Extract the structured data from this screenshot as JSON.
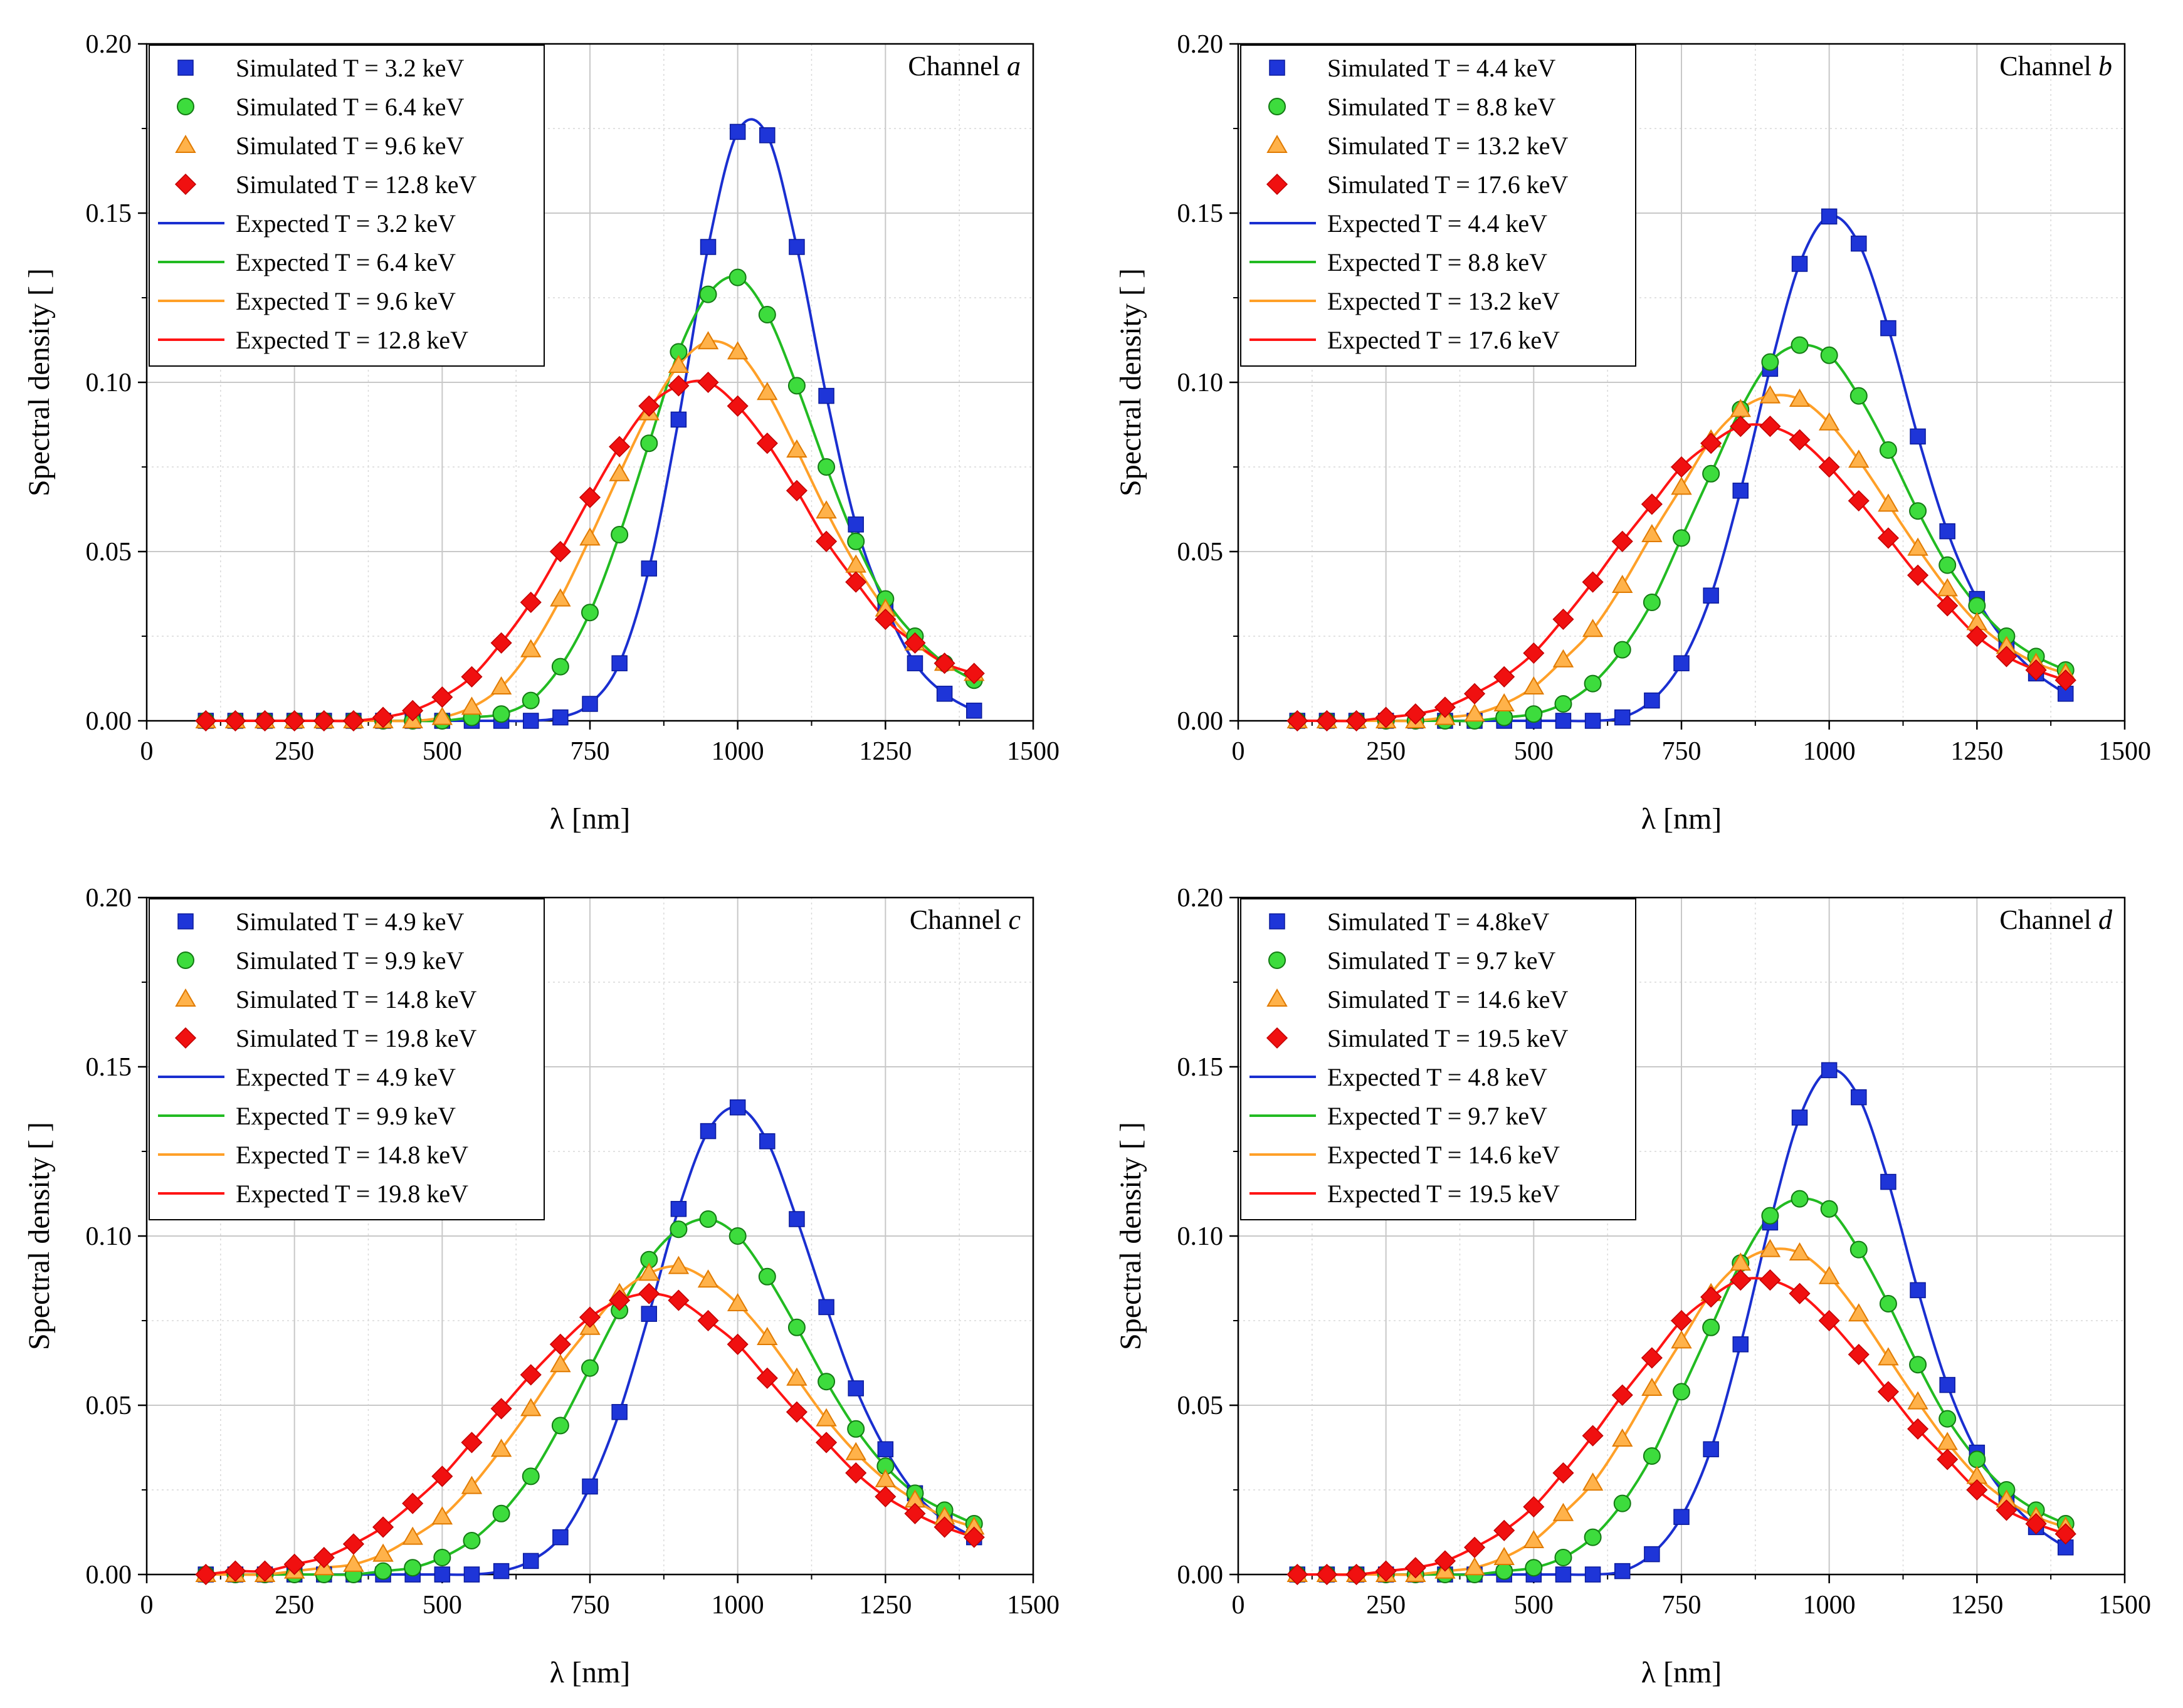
{
  "figure": {
    "colors": {
      "blue": "#1a2fd0",
      "green": "#22bb22",
      "orange": "#ffa028",
      "red": "#ff1414",
      "blue_marker": "#1e35d8",
      "green_marker": "#3ddc3d",
      "orange_marker": "#ffb24a",
      "red_marker": "#f01010"
    },
    "markers": [
      "square",
      "circle",
      "triangle",
      "diamond"
    ]
  },
  "chart_data": [
    {
      "type": "scatter",
      "channel_prefix": "Channel ",
      "channel_letter": "a",
      "xlabel": "λ [nm]",
      "ylabel": "Spectral density [ ]",
      "xlim": [
        0,
        1500
      ],
      "ylim": [
        0,
        0.2
      ],
      "xticks": [
        "0",
        "250",
        "500",
        "750",
        "1000",
        "1250",
        "1500"
      ],
      "yticks": [
        "0.00",
        "0.05",
        "0.10",
        "0.15",
        "0.20"
      ],
      "grid": true,
      "legend_position": "top-left",
      "x": [
        100,
        150,
        200,
        250,
        300,
        350,
        400,
        450,
        500,
        550,
        600,
        650,
        700,
        750,
        800,
        850,
        900,
        950,
        1000,
        1050,
        1100,
        1150,
        1200,
        1250,
        1300,
        1350,
        1400
      ],
      "series": [
        {
          "name": "Simulated T = 3.2 keV",
          "kind": "simulated",
          "color": "blue",
          "marker": "square",
          "values": [
            0,
            0,
            0,
            0,
            0,
            0,
            0,
            0,
            0,
            0,
            0,
            0,
            0.001,
            0.005,
            0.017,
            0.045,
            0.089,
            0.14,
            0.174,
            0.173,
            0.14,
            0.096,
            0.058,
            0.034,
            0.017,
            0.008,
            0.003
          ]
        },
        {
          "name": "Simulated T = 6.4 keV",
          "kind": "simulated",
          "color": "green",
          "marker": "circle",
          "values": [
            0,
            0,
            0,
            0,
            0,
            0,
            0,
            0,
            0,
            0.001,
            0.002,
            0.006,
            0.016,
            0.032,
            0.055,
            0.082,
            0.109,
            0.126,
            0.131,
            0.12,
            0.099,
            0.075,
            0.053,
            0.036,
            0.025,
            0.017,
            0.012
          ]
        },
        {
          "name": "Simulated T = 9.6 keV",
          "kind": "simulated",
          "color": "orange",
          "marker": "triangle",
          "values": [
            0,
            0,
            0,
            0,
            0,
            0,
            0,
            0,
            0.001,
            0.004,
            0.01,
            0.021,
            0.036,
            0.054,
            0.073,
            0.091,
            0.105,
            0.112,
            0.109,
            0.097,
            0.08,
            0.062,
            0.046,
            0.033,
            0.023,
            0.017,
            0.014
          ]
        },
        {
          "name": "Simulated T = 12.8 keV",
          "kind": "simulated",
          "color": "red",
          "marker": "diamond",
          "values": [
            0,
            0,
            0,
            0,
            0,
            0,
            0.001,
            0.003,
            0.007,
            0.013,
            0.023,
            0.035,
            0.05,
            0.066,
            0.081,
            0.093,
            0.099,
            0.1,
            0.093,
            0.082,
            0.068,
            0.053,
            0.041,
            0.03,
            0.023,
            0.017,
            0.014
          ]
        },
        {
          "name": "Expected T = 3.2 keV",
          "kind": "expected",
          "color": "blue",
          "of": 0
        },
        {
          "name": "Expected T = 6.4 keV",
          "kind": "expected",
          "color": "green",
          "of": 1
        },
        {
          "name": "Expected T = 9.6 keV",
          "kind": "expected",
          "color": "orange",
          "of": 2
        },
        {
          "name": "Expected T = 12.8 keV",
          "kind": "expected",
          "color": "red",
          "of": 3
        }
      ]
    },
    {
      "type": "scatter",
      "channel_prefix": "Channel ",
      "channel_letter": "b",
      "xlabel": "λ [nm]",
      "ylabel": "Spectral density [ ]",
      "xlim": [
        0,
        1500
      ],
      "ylim": [
        0,
        0.2
      ],
      "xticks": [
        "0",
        "250",
        "500",
        "750",
        "1000",
        "1250",
        "1500"
      ],
      "yticks": [
        "0.00",
        "0.05",
        "0.10",
        "0.15",
        "0.20"
      ],
      "grid": true,
      "legend_position": "top-left",
      "x": [
        100,
        150,
        200,
        250,
        300,
        350,
        400,
        450,
        500,
        550,
        600,
        650,
        700,
        750,
        800,
        850,
        900,
        950,
        1000,
        1050,
        1100,
        1150,
        1200,
        1250,
        1300,
        1350,
        1400
      ],
      "series": [
        {
          "name": "Simulated T = 4.4 keV",
          "kind": "simulated",
          "color": "blue",
          "marker": "square",
          "values": [
            0,
            0,
            0,
            0,
            0,
            0,
            0,
            0,
            0,
            0,
            0,
            0.001,
            0.006,
            0.017,
            0.037,
            0.068,
            0.104,
            0.135,
            0.149,
            0.141,
            0.116,
            0.084,
            0.056,
            0.036,
            0.023,
            0.014,
            0.008
          ]
        },
        {
          "name": "Simulated T = 8.8 keV",
          "kind": "simulated",
          "color": "green",
          "marker": "circle",
          "values": [
            0,
            0,
            0,
            0,
            0,
            0,
            0,
            0.001,
            0.002,
            0.005,
            0.011,
            0.021,
            0.035,
            0.054,
            0.073,
            0.092,
            0.106,
            0.111,
            0.108,
            0.096,
            0.08,
            0.062,
            0.046,
            0.034,
            0.025,
            0.019,
            0.015
          ]
        },
        {
          "name": "Simulated T = 13.2 keV",
          "kind": "simulated",
          "color": "orange",
          "marker": "triangle",
          "values": [
            0,
            0,
            0,
            0,
            0,
            0.001,
            0.002,
            0.005,
            0.01,
            0.018,
            0.027,
            0.04,
            0.055,
            0.069,
            0.083,
            0.092,
            0.096,
            0.095,
            0.088,
            0.077,
            0.064,
            0.051,
            0.039,
            0.029,
            0.022,
            0.017,
            0.014
          ]
        },
        {
          "name": "Simulated T = 17.6 keV",
          "kind": "simulated",
          "color": "red",
          "marker": "diamond",
          "values": [
            0,
            0,
            0,
            0.001,
            0.002,
            0.004,
            0.008,
            0.013,
            0.02,
            0.03,
            0.041,
            0.053,
            0.064,
            0.075,
            0.082,
            0.087,
            0.087,
            0.083,
            0.075,
            0.065,
            0.054,
            0.043,
            0.034,
            0.025,
            0.019,
            0.015,
            0.012
          ]
        },
        {
          "name": "Expected T = 4.4 keV",
          "kind": "expected",
          "color": "blue",
          "of": 0
        },
        {
          "name": "Expected T = 8.8 keV",
          "kind": "expected",
          "color": "green",
          "of": 1
        },
        {
          "name": "Expected T = 13.2 keV",
          "kind": "expected",
          "color": "orange",
          "of": 2
        },
        {
          "name": "Expected T = 17.6 keV",
          "kind": "expected",
          "color": "red",
          "of": 3
        }
      ]
    },
    {
      "type": "scatter",
      "channel_prefix": "Channel ",
      "channel_letter": "c",
      "xlabel": "λ [nm]",
      "ylabel": "Spectral density [ ]",
      "xlim": [
        0,
        1500
      ],
      "ylim": [
        0,
        0.2
      ],
      "xticks": [
        "0",
        "250",
        "500",
        "750",
        "1000",
        "1250",
        "1500"
      ],
      "yticks": [
        "0.00",
        "0.05",
        "0.10",
        "0.15",
        "0.20"
      ],
      "grid": true,
      "legend_position": "top-left",
      "x": [
        100,
        150,
        200,
        250,
        300,
        350,
        400,
        450,
        500,
        550,
        600,
        650,
        700,
        750,
        800,
        850,
        900,
        950,
        1000,
        1050,
        1100,
        1150,
        1200,
        1250,
        1300,
        1350,
        1400
      ],
      "series": [
        {
          "name": "Simulated T = 4.9 keV",
          "kind": "simulated",
          "color": "blue",
          "marker": "square",
          "values": [
            0,
            0,
            0,
            0,
            0,
            0,
            0,
            0,
            0,
            0,
            0.001,
            0.004,
            0.011,
            0.026,
            0.048,
            0.077,
            0.108,
            0.131,
            0.138,
            0.128,
            0.105,
            0.079,
            0.055,
            0.037,
            0.024,
            0.016,
            0.011
          ]
        },
        {
          "name": "Simulated T = 9.9 keV",
          "kind": "simulated",
          "color": "green",
          "marker": "circle",
          "values": [
            0,
            0,
            0,
            0,
            0,
            0,
            0.001,
            0.002,
            0.005,
            0.01,
            0.018,
            0.029,
            0.044,
            0.061,
            0.078,
            0.093,
            0.102,
            0.105,
            0.1,
            0.088,
            0.073,
            0.057,
            0.043,
            0.032,
            0.024,
            0.019,
            0.015
          ]
        },
        {
          "name": "Simulated T = 14.8 keV",
          "kind": "simulated",
          "color": "orange",
          "marker": "triangle",
          "values": [
            0,
            0,
            0,
            0.001,
            0.002,
            0.003,
            0.006,
            0.011,
            0.017,
            0.026,
            0.037,
            0.049,
            0.062,
            0.073,
            0.083,
            0.089,
            0.091,
            0.087,
            0.08,
            0.07,
            0.058,
            0.046,
            0.036,
            0.028,
            0.022,
            0.017,
            0.014
          ]
        },
        {
          "name": "Simulated T = 19.8 keV",
          "kind": "simulated",
          "color": "red",
          "marker": "diamond",
          "values": [
            0,
            0.001,
            0.001,
            0.003,
            0.005,
            0.009,
            0.014,
            0.021,
            0.029,
            0.039,
            0.049,
            0.059,
            0.068,
            0.076,
            0.081,
            0.083,
            0.081,
            0.075,
            0.068,
            0.058,
            0.048,
            0.039,
            0.03,
            0.023,
            0.018,
            0.014,
            0.011
          ]
        },
        {
          "name": "Expected T = 4.9 keV",
          "kind": "expected",
          "color": "blue",
          "of": 0
        },
        {
          "name": "Expected T = 9.9 keV",
          "kind": "expected",
          "color": "green",
          "of": 1
        },
        {
          "name": "Expected T = 14.8 keV",
          "kind": "expected",
          "color": "orange",
          "of": 2
        },
        {
          "name": "Expected T = 19.8 keV",
          "kind": "expected",
          "color": "red",
          "of": 3
        }
      ]
    },
    {
      "type": "scatter",
      "channel_prefix": "Channel ",
      "channel_letter": "d",
      "xlabel": "λ [nm]",
      "ylabel": "Spectral density [ ]",
      "xlim": [
        0,
        1500
      ],
      "ylim": [
        0,
        0.2
      ],
      "xticks": [
        "0",
        "250",
        "500",
        "750",
        "1000",
        "1250",
        "1500"
      ],
      "yticks": [
        "0.00",
        "0.05",
        "0.10",
        "0.15",
        "0.20"
      ],
      "grid": true,
      "legend_position": "top-left",
      "x": [
        100,
        150,
        200,
        250,
        300,
        350,
        400,
        450,
        500,
        550,
        600,
        650,
        700,
        750,
        800,
        850,
        900,
        950,
        1000,
        1050,
        1100,
        1150,
        1200,
        1250,
        1300,
        1350,
        1400
      ],
      "series": [
        {
          "name": "Simulated T = 4.8keV",
          "kind": "simulated",
          "color": "blue",
          "marker": "square",
          "values": [
            0,
            0,
            0,
            0,
            0,
            0,
            0,
            0,
            0,
            0,
            0,
            0.001,
            0.006,
            0.017,
            0.037,
            0.068,
            0.104,
            0.135,
            0.149,
            0.141,
            0.116,
            0.084,
            0.056,
            0.036,
            0.023,
            0.014,
            0.008
          ]
        },
        {
          "name": "Simulated T = 9.7 keV",
          "kind": "simulated",
          "color": "green",
          "marker": "circle",
          "values": [
            0,
            0,
            0,
            0,
            0,
            0,
            0,
            0.001,
            0.002,
            0.005,
            0.011,
            0.021,
            0.035,
            0.054,
            0.073,
            0.092,
            0.106,
            0.111,
            0.108,
            0.096,
            0.08,
            0.062,
            0.046,
            0.034,
            0.025,
            0.019,
            0.015
          ]
        },
        {
          "name": "Simulated T = 14.6 keV",
          "kind": "simulated",
          "color": "orange",
          "marker": "triangle",
          "values": [
            0,
            0,
            0,
            0,
            0,
            0.001,
            0.002,
            0.005,
            0.01,
            0.018,
            0.027,
            0.04,
            0.055,
            0.069,
            0.083,
            0.092,
            0.096,
            0.095,
            0.088,
            0.077,
            0.064,
            0.051,
            0.039,
            0.029,
            0.022,
            0.017,
            0.014
          ]
        },
        {
          "name": "Simulated T = 19.5 keV",
          "kind": "simulated",
          "color": "red",
          "marker": "diamond",
          "values": [
            0,
            0,
            0,
            0.001,
            0.002,
            0.004,
            0.008,
            0.013,
            0.02,
            0.03,
            0.041,
            0.053,
            0.064,
            0.075,
            0.082,
            0.087,
            0.087,
            0.083,
            0.075,
            0.065,
            0.054,
            0.043,
            0.034,
            0.025,
            0.019,
            0.015,
            0.012
          ]
        },
        {
          "name": "Expected T = 4.8 keV",
          "kind": "expected",
          "color": "blue",
          "of": 0
        },
        {
          "name": "Expected T = 9.7 keV",
          "kind": "expected",
          "color": "green",
          "of": 1
        },
        {
          "name": "Expected T = 14.6 keV",
          "kind": "expected",
          "color": "orange",
          "of": 2
        },
        {
          "name": "Expected T = 19.5 keV",
          "kind": "expected",
          "color": "red",
          "of": 3
        }
      ]
    }
  ]
}
